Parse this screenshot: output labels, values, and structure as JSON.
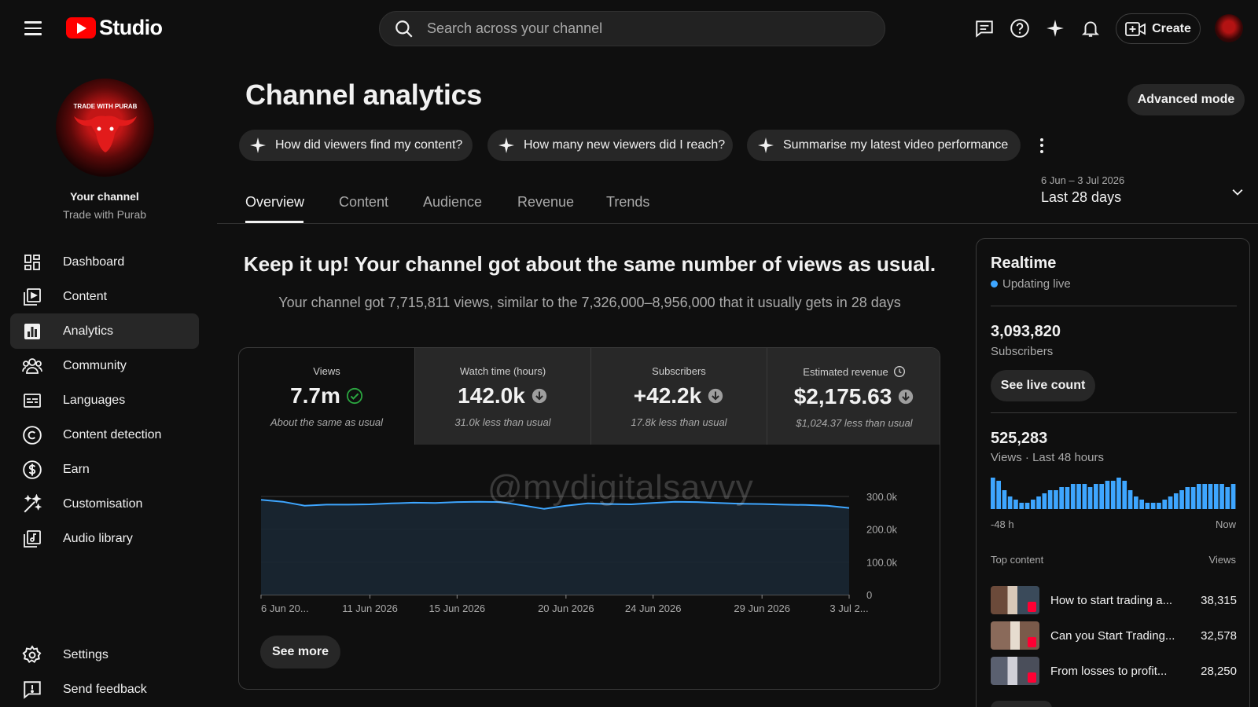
{
  "header": {
    "logo_text": "Studio",
    "search_placeholder": "Search across your channel",
    "create_label": "Create",
    "icons": [
      "menu-icon",
      "feedback-comment-icon",
      "help-icon",
      "sparkle-icon",
      "notifications-icon",
      "create-video-icon"
    ]
  },
  "sidebar": {
    "your_channel": "Your channel",
    "channel_name": "Trade with Purab",
    "avatar_text": "TRADE WITH PURAB",
    "items": [
      {
        "label": "Dashboard",
        "icon": "dashboard-icon"
      },
      {
        "label": "Content",
        "icon": "content-icon"
      },
      {
        "label": "Analytics",
        "icon": "analytics-icon",
        "active": true
      },
      {
        "label": "Community",
        "icon": "community-icon"
      },
      {
        "label": "Languages",
        "icon": "languages-icon"
      },
      {
        "label": "Content detection",
        "icon": "copyright-icon"
      },
      {
        "label": "Earn",
        "icon": "earn-icon"
      },
      {
        "label": "Customisation",
        "icon": "customisation-icon"
      },
      {
        "label": "Audio library",
        "icon": "audio-library-icon"
      }
    ],
    "footer": [
      {
        "label": "Settings",
        "icon": "settings-icon"
      },
      {
        "label": "Send feedback",
        "icon": "feedback-icon"
      }
    ]
  },
  "main": {
    "title": "Channel analytics",
    "advanced_mode": "Advanced mode",
    "chips": [
      "How did viewers find my content?",
      "How many new viewers did I reach?",
      "Summarise my latest video performance"
    ],
    "tabs": [
      "Overview",
      "Content",
      "Audience",
      "Revenue",
      "Trends"
    ],
    "active_tab": "Overview",
    "date_range": {
      "sub": "6 Jun – 3 Jul 2026",
      "label": "Last 28 days"
    },
    "headline": "Keep it up! Your channel got about the same number of views as usual.",
    "subline": "Your channel got 7,715,811 views, similar to the 7,326,000–8,956,000 that it usually gets in 28 days",
    "metrics": [
      {
        "label": "Views",
        "value": "7.7m",
        "note": "About the same as usual",
        "status": "check"
      },
      {
        "label": "Watch time (hours)",
        "value": "142.0k",
        "note": "31.0k less than usual",
        "status": "down"
      },
      {
        "label": "Subscribers",
        "value": "+42.2k",
        "note": "17.8k less than usual",
        "status": "down"
      },
      {
        "label": "Estimated revenue",
        "value": "$2,175.63",
        "note": "$1,024.37 less than usual",
        "status": "down"
      }
    ],
    "see_more": "See more",
    "watermark": "@mydigitalsavvy"
  },
  "chart_data": {
    "type": "area",
    "series": [
      {
        "values": [
          290000,
          284000,
          272000,
          275000,
          275000,
          276000,
          279000,
          281000,
          280000,
          283000,
          284000,
          283000,
          273000,
          262000,
          272000,
          279000,
          277000,
          276000,
          280000,
          284000,
          283000,
          280000,
          278000,
          277000,
          275000,
          274000,
          272000,
          265000
        ]
      }
    ],
    "x_tick_labels": [
      "6 Jun 20...",
      "11 Jun 2026",
      "15 Jun 2026",
      "20 Jun 2026",
      "24 Jun 2026",
      "29 Jun 2026",
      "3 Jul 2..."
    ],
    "x_tick_index": [
      0,
      5,
      9,
      14,
      18,
      23,
      27
    ],
    "y_ticks": [
      0,
      100000,
      200000,
      300000
    ],
    "y_tick_labels": [
      "0",
      "100.0k",
      "200.0k",
      "300.0k"
    ],
    "ylim": [
      0,
      300000
    ],
    "grid": true,
    "colors": {
      "line": "#3ea6ff",
      "fill": "#1a2733"
    }
  },
  "realtime": {
    "title": "Realtime",
    "live_label": "Updating live",
    "subscribers": "3,093,820",
    "subscribers_label": "Subscribers",
    "see_live_count": "See live count",
    "views": "525,283",
    "views_label": "Views · Last 48 hours",
    "axis_start": "-48 h",
    "axis_end": "Now",
    "bars": [
      10,
      9,
      6,
      4,
      3,
      2,
      2,
      3,
      4,
      5,
      6,
      6,
      7,
      7,
      8,
      8,
      8,
      7,
      8,
      8,
      9,
      9,
      10,
      9,
      6,
      4,
      3,
      2,
      2,
      2,
      3,
      4,
      5,
      6,
      7,
      7,
      8,
      8,
      8,
      8,
      8,
      7,
      8
    ],
    "top_content_label": "Top content",
    "views_col": "Views",
    "top_content": [
      {
        "title": "How to start trading a...",
        "views": "38,315"
      },
      {
        "title": "Can you Start Trading...",
        "views": "32,578"
      },
      {
        "title": "From losses to profit...",
        "views": "28,250"
      }
    ]
  },
  "colors": {
    "accent": "#3ea6ff",
    "positive": "#2ba640",
    "background": "#0f0f0f",
    "surface": "#272727"
  }
}
